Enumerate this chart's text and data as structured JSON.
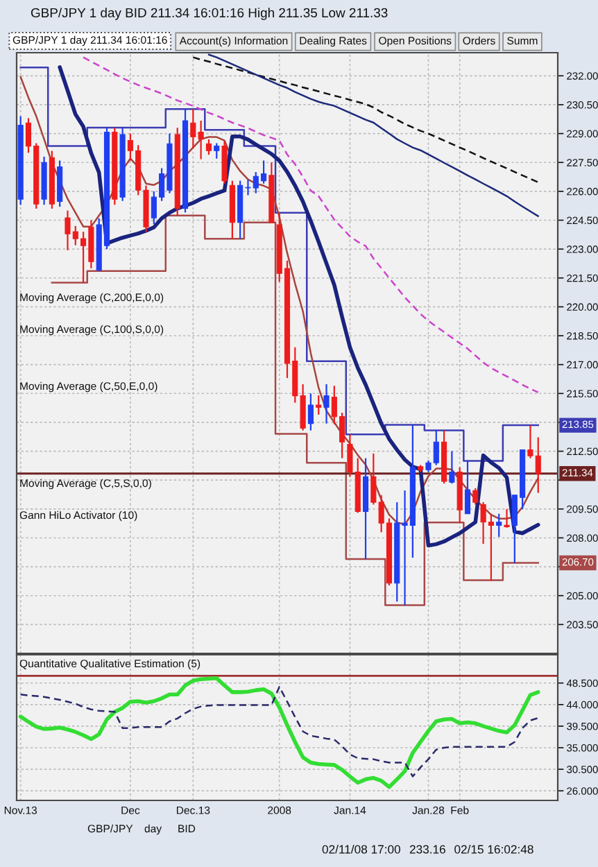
{
  "chart_data": [
    {
      "type": "candlestick",
      "title": "GBP/JPY 1 day BID 211.34 16:01:16 High 211.35 Low 211.33",
      "subtitle": "GBP/JPY 1 day 211.34 16:01:16",
      "categories": [
        null,
        null,
        null,
        null,
        null,
        null,
        null,
        null,
        null,
        null,
        null,
        null,
        null,
        null,
        null,
        null,
        null,
        null,
        null,
        null,
        null,
        null,
        null,
        null,
        null,
        null,
        null,
        null,
        null,
        null,
        null,
        null,
        null,
        null,
        null,
        null,
        null,
        null,
        null,
        null,
        null,
        null,
        null,
        null,
        null,
        null,
        null,
        null,
        null,
        null,
        null,
        null,
        null,
        null,
        null,
        null,
        null,
        null,
        null,
        null,
        null,
        null,
        null,
        null,
        null,
        null,
        null,
        null,
        null
      ],
      "ohlc": [
        [
          225.59,
          229.9,
          225.3,
          229.43
        ],
        [
          229.55,
          229.8,
          228.0,
          228.35
        ],
        [
          228.35,
          228.5,
          225.1,
          225.34
        ],
        [
          225.59,
          227.8,
          225.3,
          227.5
        ],
        [
          227.75,
          228.1,
          225.1,
          225.34
        ],
        [
          225.47,
          227.6,
          225.2,
          227.27
        ],
        [
          224.62,
          225.0,
          222.94,
          223.79
        ],
        [
          223.9,
          224.2,
          223.2,
          223.54
        ],
        [
          223.54,
          223.9,
          221.26,
          223.18
        ],
        [
          224.15,
          224.5,
          222.0,
          222.35
        ],
        [
          221.9,
          224.6,
          221.86,
          224.26
        ],
        [
          223.18,
          229.31,
          223.0,
          229.07
        ],
        [
          229.07,
          229.31,
          225.3,
          225.59
        ],
        [
          225.7,
          229.31,
          225.5,
          228.95
        ],
        [
          228.64,
          229.0,
          227.6,
          228.11
        ],
        [
          228.11,
          228.4,
          225.8,
          226.06
        ],
        [
          226.06,
          226.3,
          223.9,
          224.15
        ],
        [
          224.62,
          226.0,
          224.3,
          225.7
        ],
        [
          225.7,
          227.2,
          225.5,
          226.91
        ],
        [
          226.06,
          229.0,
          225.9,
          228.47
        ],
        [
          228.95,
          229.3,
          224.74,
          225.11
        ],
        [
          225.11,
          230.27,
          224.9,
          229.67
        ],
        [
          229.55,
          230.27,
          228.23,
          228.83
        ],
        [
          229.07,
          229.67,
          227.67,
          228.71
        ],
        [
          228.47,
          228.7,
          227.9,
          228.11
        ],
        [
          228.11,
          228.5,
          227.7,
          228.35
        ],
        [
          228.35,
          228.6,
          226.4,
          226.55
        ],
        [
          226.31,
          226.55,
          223.54,
          224.38
        ],
        [
          224.38,
          226.55,
          223.54,
          226.31
        ],
        [
          226.18,
          226.6,
          225.8,
          226.2
        ],
        [
          226.18,
          227.0,
          225.9,
          226.78
        ],
        [
          226.55,
          227.6,
          226.4,
          226.91
        ],
        [
          226.83,
          227.5,
          224.38,
          224.38
        ],
        [
          224.26,
          224.89,
          221.3,
          221.74
        ],
        [
          221.99,
          222.4,
          216.3,
          217.06
        ],
        [
          217.18,
          217.9,
          215.02,
          215.38
        ],
        [
          215.38,
          215.98,
          213.58,
          213.7
        ],
        [
          213.94,
          215.5,
          213.58,
          214.9
        ],
        [
          214.9,
          215.4,
          214.4,
          214.78
        ],
        [
          214.78,
          215.98,
          213.94,
          215.38
        ],
        [
          215.31,
          215.9,
          213.9,
          214.3
        ],
        [
          214.3,
          214.5,
          212.14,
          212.98
        ],
        [
          212.86,
          213.38,
          211.18,
          211.42
        ],
        [
          211.42,
          212.14,
          209.3,
          209.37
        ],
        [
          209.37,
          212.14,
          206.9,
          211.18
        ],
        [
          211.18,
          212.38,
          209.73,
          209.85
        ],
        [
          209.85,
          210.22,
          208.29,
          208.77
        ],
        [
          208.77,
          209.01,
          205.53,
          205.65
        ],
        [
          205.65,
          209.85,
          204.69,
          208.77
        ],
        [
          208.65,
          210.46,
          204.5,
          208.77
        ],
        [
          208.65,
          213.87,
          206.97,
          211.66
        ],
        [
          211.7,
          211.78,
          211.42,
          211.54
        ],
        [
          211.54,
          212.02,
          211.42,
          211.9
        ],
        [
          211.9,
          213.58,
          211.78,
          212.98
        ],
        [
          212.98,
          213.58,
          210.82,
          210.94
        ],
        [
          210.89,
          212.5,
          210.82,
          211.42
        ],
        [
          211.42,
          211.66,
          208.77,
          209.45
        ],
        [
          209.25,
          212.0,
          209.25,
          210.5
        ],
        [
          210.46,
          210.58,
          209.73,
          209.85
        ],
        [
          209.73,
          209.85,
          207.69,
          208.82
        ],
        [
          208.82,
          209.25,
          205.77,
          208.65
        ],
        [
          208.65,
          209.25,
          208.05,
          208.82
        ],
        [
          208.65,
          209.49,
          208.53,
          208.58
        ],
        [
          208.65,
          210.22,
          206.7,
          210.22
        ],
        [
          210.1,
          212.57,
          209.49,
          212.57
        ],
        [
          212.57,
          213.85,
          212.14,
          212.26
        ],
        [
          212.26,
          213.22,
          210.34,
          211.34
        ],
        null,
        null
      ],
      "colors": [
        "#1f3ff0",
        "#ee1c1c",
        "#ee1c1c",
        "#1f3ff0",
        "#ee1c1c",
        "#1f3ff0",
        "#ee1c1c",
        "#ee1c1c",
        "#ee1c1c",
        "#ee1c1c",
        "#1f3ff0",
        "#1f3ff0",
        "#ee1c1c",
        "#1f3ff0",
        "#ee1c1c",
        "#ee1c1c",
        "#ee1c1c",
        "#1f3ff0",
        "#1f3ff0",
        "#1f3ff0",
        "#ee1c1c",
        "#1f3ff0",
        "#ee1c1c",
        "#ee1c1c",
        "#ee1c1c",
        "#1f3ff0",
        "#ee1c1c",
        "#ee1c1c",
        "#1f3ff0",
        "#1f3ff0",
        "#1f3ff0",
        "#1f3ff0",
        "#ee1c1c",
        "#ee1c1c",
        "#ee1c1c",
        "#ee1c1c",
        "#ee1c1c",
        "#1f3ff0",
        "#ee1c1c",
        "#1f3ff0",
        "#ee1c1c",
        "#ee1c1c",
        "#ee1c1c",
        "#ee1c1c",
        "#1f3ff0",
        "#ee1c1c",
        "#ee1c1c",
        "#ee1c1c",
        "#1f3ff0",
        "#1f3ff0",
        "#1f3ff0",
        "#ee1c1c",
        "#1f3ff0",
        "#1f3ff0",
        "#ee1c1c",
        "#1f3ff0",
        "#ee1c1c",
        "#1f3ff0",
        "#ee1c1c",
        "#ee1c1c",
        "#ee1c1c",
        "#1f3ff0",
        "#ee1c1c",
        "#1f3ff0",
        "#1f3ff0",
        "#ee1c1c",
        "#ee1c1c",
        null,
        null
      ],
      "series": [
        {
          "type": "line",
          "color": "#111111",
          "line_style": "dashed",
          "values": [
            null,
            null,
            null,
            null,
            null,
            null,
            null,
            null,
            null,
            null,
            null,
            null,
            null,
            null,
            null,
            null,
            null,
            null,
            null,
            null,
            null,
            null,
            232.96,
            232.84,
            232.74,
            232.62,
            232.51,
            232.4,
            232.29,
            232.18,
            232.06,
            231.95,
            231.84,
            231.73,
            231.62,
            231.52,
            231.4,
            231.3,
            231.19,
            231.08,
            230.97,
            230.87,
            230.75,
            230.64,
            230.53,
            230.36,
            230.11,
            229.93,
            229.72,
            229.5,
            229.32,
            229.14,
            229.0,
            228.82,
            228.64,
            228.46,
            228.28,
            228.1,
            227.92,
            227.73,
            227.55,
            227.37,
            227.19,
            227.01,
            226.83,
            226.65,
            226.47,
            null,
            null
          ]
        },
        {
          "type": "line",
          "color": "#1c2a7a",
          "values": [
            null,
            null,
            null,
            null,
            null,
            null,
            null,
            null,
            null,
            null,
            null,
            null,
            null,
            null,
            null,
            null,
            null,
            null,
            null,
            null,
            null,
            null,
            null,
            null,
            233.1,
            232.96,
            232.78,
            232.6,
            232.42,
            232.24,
            232.06,
            231.88,
            231.7,
            231.52,
            231.37,
            231.16,
            230.98,
            230.8,
            230.65,
            230.54,
            230.44,
            230.26,
            230.08,
            229.9,
            229.72,
            229.57,
            229.28,
            229.0,
            228.71,
            228.49,
            228.28,
            228.13,
            227.92,
            227.7,
            227.48,
            227.27,
            227.05,
            226.83,
            226.62,
            226.4,
            226.19,
            225.97,
            225.75,
            225.47,
            225.21,
            224.96,
            224.71,
            null,
            null
          ]
        },
        {
          "type": "line",
          "color": "#cc44cc",
          "line_style": "dashed",
          "values": [
            null,
            null,
            null,
            null,
            null,
            null,
            null,
            null,
            232.96,
            232.74,
            232.53,
            232.31,
            232.09,
            231.88,
            231.7,
            231.52,
            231.37,
            231.23,
            231.08,
            230.9,
            230.72,
            230.58,
            230.44,
            230.26,
            230.08,
            229.93,
            229.75,
            229.57,
            229.43,
            229.28,
            229.1,
            228.92,
            228.78,
            228.64,
            227.91,
            227.41,
            226.76,
            226.04,
            225.75,
            225.14,
            224.53,
            224.1,
            223.66,
            223.38,
            223.16,
            222.51,
            222.01,
            221.5,
            221.0,
            220.49,
            220.06,
            219.63,
            219.27,
            218.98,
            218.69,
            218.4,
            218.11,
            217.83,
            217.47,
            217.11,
            216.82,
            216.6,
            216.39,
            216.17,
            215.95,
            215.74,
            215.56,
            null,
            null
          ]
        },
        {
          "type": "line",
          "color": "#a8443c",
          "values": [
            231.95,
            230.87,
            229.9,
            228.71,
            227.48,
            226.54,
            225.61,
            224.89,
            224.17,
            224.17,
            224.74,
            225.32,
            226.18,
            227.12,
            227.7,
            227.27,
            226.4,
            226.33,
            226.54,
            227.05,
            227.41,
            227.84,
            228.28,
            228.71,
            228.82,
            228.82,
            228.64,
            227.63,
            227.05,
            226.62,
            226.4,
            226.29,
            226.11,
            224.67,
            222.8,
            221.21,
            219.77,
            217.6,
            215.8,
            214.6,
            214.0,
            213.4,
            212.9,
            212.3,
            211.8,
            211.0,
            210.0,
            209.2,
            208.8,
            208.7,
            209.3,
            210.4,
            211.2,
            211.6,
            211.6,
            211.55,
            211.0,
            210.5,
            210.0,
            209.6,
            209.2,
            209.0,
            209.0,
            209.1,
            209.6,
            210.4,
            211.1,
            null,
            null
          ]
        },
        {
          "type": "line",
          "color": "#1a237e",
          "values": [
            null,
            null,
            null,
            null,
            null,
            232.45,
            231.23,
            230.0,
            229.36,
            227.99,
            226.98,
            223.3,
            223.45,
            223.59,
            223.7,
            223.81,
            223.95,
            224.13,
            224.6,
            224.89,
            225.11,
            225.25,
            225.4,
            225.61,
            225.75,
            225.9,
            226.04,
            228.85,
            228.85,
            228.69,
            228.43,
            228.19,
            227.94,
            227.59,
            227.01,
            226.3,
            225.47,
            224.46,
            223.38,
            222.26,
            221.14,
            219.48,
            217.9,
            216.83,
            215.96,
            214.95,
            213.94,
            213.14,
            212.57,
            212.06,
            211.7,
            211.56,
            207.6,
            207.67,
            207.81,
            208.03,
            208.24,
            208.53,
            208.82,
            212.28,
            211.92,
            211.63,
            211.13,
            208.32,
            208.24,
            208.46,
            208.68,
            null,
            null
          ]
        },
        {
          "type": "step",
          "color": "#3c3cb4",
          "values": [
            232.43,
            232.43,
            232.43,
            232.43,
            228.35,
            228.35,
            228.35,
            228.35,
            228.35,
            229.31,
            229.31,
            229.31,
            229.31,
            229.31,
            229.31,
            229.31,
            229.31,
            229.31,
            229.31,
            230.27,
            230.27,
            230.27,
            230.27,
            230.27,
            229.19,
            229.19,
            229.19,
            229.19,
            229.19,
            228.35,
            228.35,
            228.35,
            228.35,
            224.89,
            224.89,
            224.89,
            224.89,
            217.18,
            217.18,
            217.18,
            217.18,
            217.18,
            213.38,
            213.38,
            213.38,
            213.38,
            213.38,
            213.87,
            213.87,
            213.87,
            213.87,
            213.87,
            213.58,
            213.58,
            213.58,
            213.58,
            213.58,
            212.0,
            212.0,
            212.0,
            212.0,
            212.0,
            213.85,
            213.85,
            213.85,
            213.85,
            213.85,
            null,
            null
          ]
        },
        {
          "type": "step",
          "color": "#a84848",
          "values": [
            null,
            null,
            null,
            null,
            221.26,
            221.26,
            221.26,
            221.26,
            221.26,
            221.86,
            221.86,
            221.86,
            221.86,
            221.86,
            221.86,
            221.86,
            221.86,
            221.86,
            221.86,
            224.74,
            224.74,
            224.74,
            224.74,
            224.74,
            223.54,
            223.54,
            223.54,
            223.54,
            223.54,
            224.38,
            224.38,
            224.38,
            224.38,
            213.4,
            213.4,
            213.4,
            213.4,
            211.9,
            211.9,
            211.9,
            211.9,
            211.9,
            206.9,
            206.9,
            206.9,
            206.9,
            206.9,
            204.5,
            204.5,
            204.5,
            204.5,
            204.5,
            208.8,
            208.8,
            208.8,
            208.8,
            208.8,
            205.8,
            205.8,
            205.8,
            205.8,
            205.8,
            206.7,
            206.7,
            206.7,
            206.7,
            206.7,
            null,
            null
          ]
        }
      ],
      "ylim": [
        202.0,
        233.2
      ],
      "yticks": [
        {
          "value": 203.5,
          "label": "203.50"
        },
        {
          "value": 205,
          "label": "205.00"
        },
        {
          "value": 206.5,
          "label": null
        },
        {
          "value": 208,
          "label": "208.00"
        },
        {
          "value": 209.5,
          "label": "209.50"
        },
        {
          "value": 211,
          "label": null
        },
        {
          "value": 212.5,
          "label": "212.50"
        },
        {
          "value": 214,
          "label": null
        },
        {
          "value": 215.5,
          "label": "215.50"
        },
        {
          "value": 217,
          "label": "217.00"
        },
        {
          "value": 218.5,
          "label": "218.50"
        },
        {
          "value": 220,
          "label": "220.00"
        },
        {
          "value": 221.5,
          "label": "221.50"
        },
        {
          "value": 223,
          "label": "223.00"
        },
        {
          "value": 224.5,
          "label": "224.50"
        },
        {
          "value": 226,
          "label": "226.00"
        },
        {
          "value": 227.5,
          "label": "227.50"
        },
        {
          "value": 229,
          "label": "229.00"
        },
        {
          "value": 230.5,
          "label": "230.50"
        },
        {
          "value": 232,
          "label": "232.00"
        }
      ],
      "ref_lines": [
        {
          "axis": "y",
          "value": 211.34,
          "label": "211.34",
          "color": "#6e2020"
        }
      ],
      "annotations": [
        "Moving Average (C,200,E,0,0)",
        "Moving Average (C,100,S,0,0)",
        "Moving Average (C,50,E,0,0)",
        "Moving Average (C,5,S,0,0)",
        "Gann HiLo Activator (10)",
        "Account(s) Information",
        "Dealing Rates",
        "Open Positions",
        "Orders",
        "Summ",
        {
          "text": "213.85",
          "y": 213.85
        },
        {
          "text": "206.70",
          "y": 206.7
        }
      ],
      "grid": true,
      "tick_labels": "y"
    },
    {
      "type": "line",
      "categories": [
        "Nov.13",
        null,
        null,
        null,
        null,
        null,
        null,
        null,
        null,
        null,
        null,
        null,
        null,
        null,
        "Dec",
        null,
        null,
        null,
        null,
        null,
        null,
        null,
        "Dec.13",
        null,
        null,
        null,
        null,
        null,
        null,
        null,
        null,
        null,
        null,
        "2008",
        null,
        null,
        null,
        null,
        null,
        null,
        null,
        null,
        "Jan.14",
        null,
        null,
        null,
        null,
        null,
        null,
        null,
        null,
        null,
        "Jan.28",
        null,
        null,
        null,
        "Feb",
        null,
        null,
        null,
        null,
        null,
        null,
        null,
        null,
        null,
        null,
        null,
        null
      ],
      "series": [
        {
          "color": "#33dd33",
          "values": [
            41.5,
            40.4,
            39.4,
            38.9,
            39.0,
            39.2,
            38.8,
            38.3,
            37.6,
            36.8,
            37.8,
            40.9,
            42.5,
            43.3,
            44.6,
            44.7,
            44.4,
            44.7,
            45.3,
            46.1,
            46.1,
            48.0,
            49.0,
            49.3,
            49.4,
            49.5,
            48.0,
            46.6,
            46.6,
            46.7,
            47.0,
            47.2,
            46.3,
            43.4,
            39.7,
            36.2,
            33.0,
            31.9,
            31.6,
            31.5,
            31.4,
            30.4,
            29.0,
            27.7,
            28.4,
            28.7,
            28.1,
            26.8,
            28.4,
            30.1,
            33.9,
            36.2,
            38.5,
            40.5,
            40.9,
            41.0,
            40.1,
            40.3,
            40.1,
            39.5,
            39.0,
            38.5,
            38.2,
            39.7,
            42.8,
            46.0,
            46.6,
            null,
            null
          ]
        },
        {
          "color": "#2a2a6a",
          "line_style": "dashed",
          "values": [
            46.1,
            45.9,
            45.8,
            45.6,
            45.3,
            45.0,
            44.6,
            44.2,
            43.5,
            43.0,
            42.7,
            42.6,
            42.5,
            39.1,
            39.1,
            39.3,
            39.3,
            39.3,
            39.3,
            40.5,
            41.1,
            42.2,
            43.1,
            43.6,
            43.8,
            43.9,
            43.9,
            43.9,
            43.9,
            43.9,
            43.9,
            43.9,
            43.9,
            47.7,
            44.6,
            41.4,
            38.4,
            37.5,
            37.2,
            36.9,
            36.7,
            35.3,
            33.6,
            32.8,
            32.7,
            32.6,
            32.2,
            31.9,
            31.9,
            31.9,
            29.0,
            30.9,
            32.6,
            34.6,
            35.0,
            35.2,
            35.2,
            35.2,
            35.2,
            35.2,
            35.2,
            35.2,
            35.2,
            36.2,
            39.1,
            40.7,
            41.2,
            null,
            null
          ]
        }
      ],
      "ylim": [
        24.0,
        54.4
      ],
      "yticks": [
        {
          "value": 26,
          "label": "26.000"
        },
        {
          "value": 30.5,
          "label": "30.500"
        },
        {
          "value": 35,
          "label": "35.000"
        },
        {
          "value": 39.5,
          "label": "39.500"
        },
        {
          "value": 44,
          "label": "44.000"
        },
        {
          "value": 48.5,
          "label": "48.500"
        }
      ],
      "ref_lines": [
        {
          "axis": "y",
          "value": 50,
          "color": "#a03030"
        }
      ],
      "annotations": [
        "Quantitative Qualitative Estimation (5)",
        "GBP/JPY",
        "day",
        "BID",
        "02/11/08 17:00",
        "233.16",
        "02/15 16:02:48"
      ],
      "grid": true
    }
  ]
}
